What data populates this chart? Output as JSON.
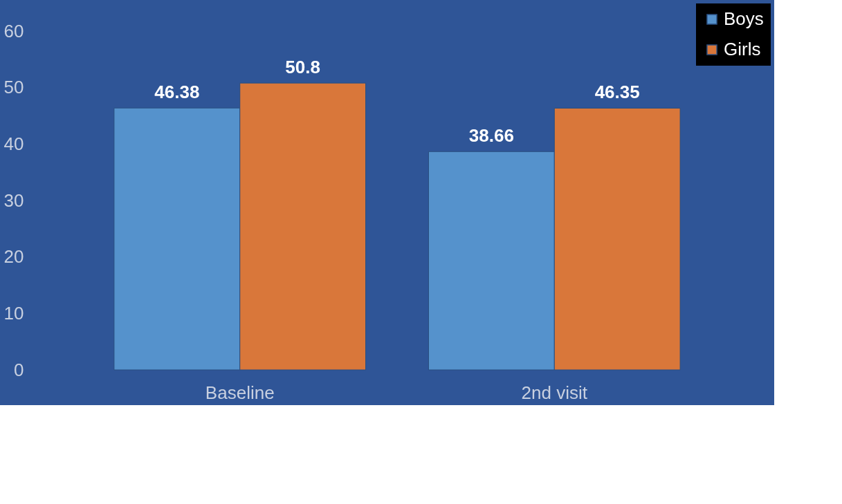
{
  "chart_data": {
    "type": "bar",
    "categories": [
      "Baseline",
      "2nd visit"
    ],
    "series": [
      {
        "name": "Boys",
        "color": "#5592cc",
        "values": [
          46.38,
          38.66
        ]
      },
      {
        "name": "Girls",
        "color": "#d9773a",
        "values": [
          50.8,
          46.35
        ]
      }
    ],
    "ylim": [
      0,
      60
    ],
    "yticks": [
      0,
      10,
      20,
      30,
      40,
      50,
      60
    ],
    "grid": false,
    "data_labels": true,
    "legend": "top right"
  }
}
